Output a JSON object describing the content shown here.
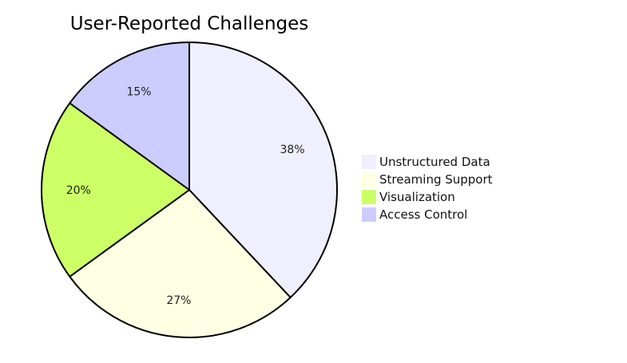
{
  "chart_data": {
    "type": "pie",
    "title": "User-Reported Challenges",
    "categories": [
      "Unstructured Data",
      "Streaming Support",
      "Visualization",
      "Access Control"
    ],
    "values": [
      38,
      27,
      20,
      15
    ],
    "labels": [
      "38%",
      "27%",
      "20%",
      "15%"
    ],
    "colors": [
      "#efeffd",
      "#ffffe3",
      "#ccff66",
      "#ccccff"
    ],
    "legend_position": "right",
    "start_angle": "top, clockwise"
  }
}
